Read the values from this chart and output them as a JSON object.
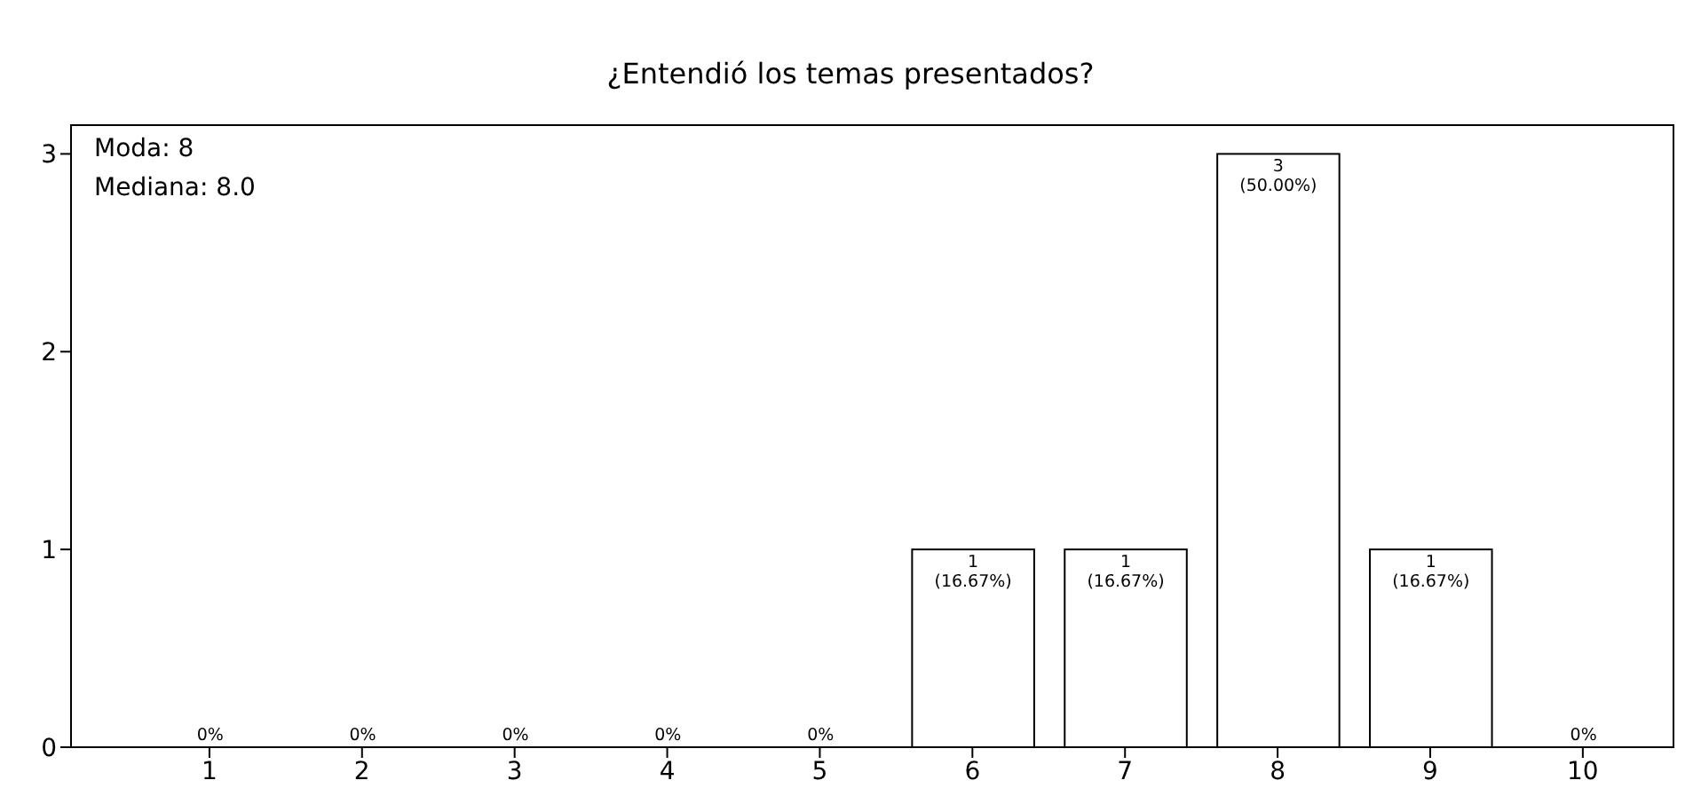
{
  "chart_data": {
    "type": "bar",
    "title": "¿Entendió los temas presentados?",
    "categories": [
      "1",
      "2",
      "3",
      "4",
      "5",
      "6",
      "7",
      "8",
      "9",
      "10"
    ],
    "values": [
      0,
      0,
      0,
      0,
      0,
      1,
      1,
      3,
      1,
      0
    ],
    "value_labels": [
      "0%",
      "0%",
      "0%",
      "0%",
      "0%",
      "1\n(16.67%)",
      "1\n(16.67%)",
      "3\n(50.00%)",
      "1\n(16.67%)",
      "0%"
    ],
    "color": "#ffffff",
    "ylim": [
      0,
      3.15
    ],
    "yticks": [
      0,
      1,
      2,
      3
    ],
    "annotations": [
      "Moda: 8",
      "Mediana: 8.0"
    ]
  }
}
